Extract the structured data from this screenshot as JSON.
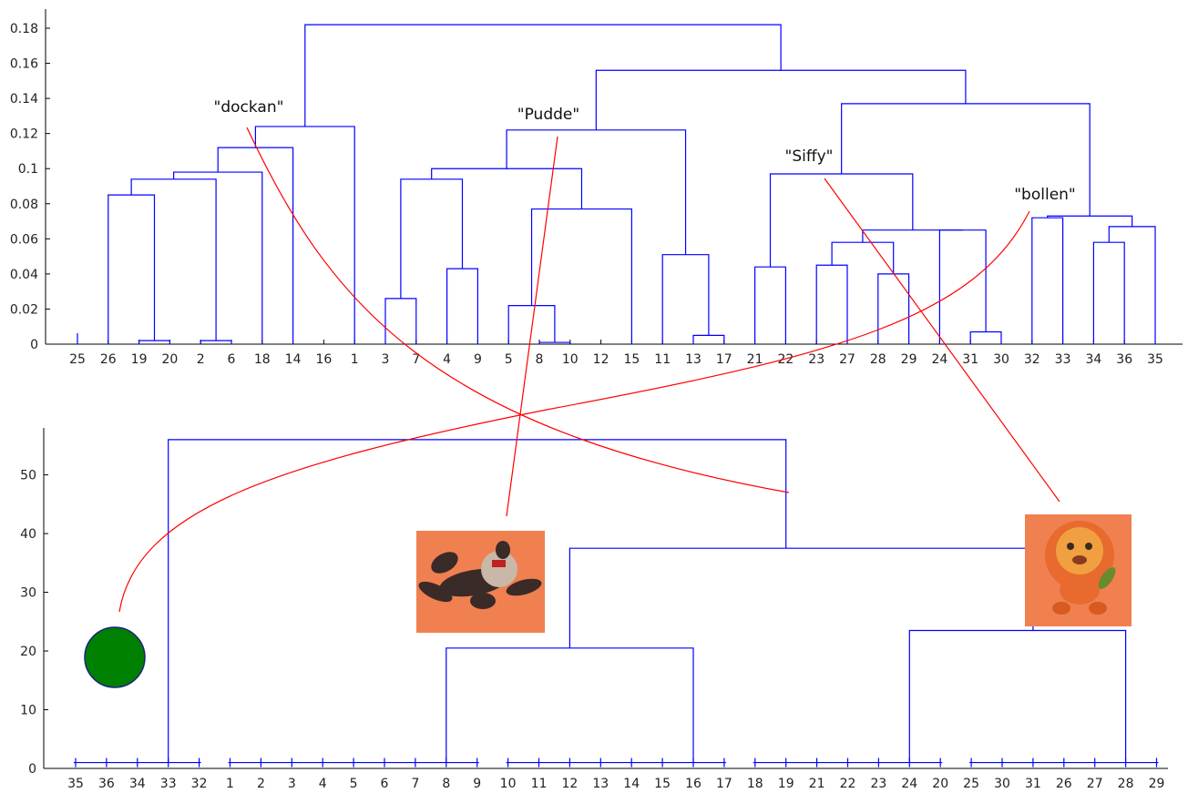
{
  "colors": {
    "dendrogram": "#0000ff",
    "annotation_line": "#ff0000",
    "axis": "#000000",
    "ball_fill": "#008000",
    "ball_stroke": "#1a237e",
    "photo_background": "#f08050"
  },
  "chart_data": [
    {
      "type": "dendrogram",
      "y_axis": {
        "min": 0,
        "max": 0.18,
        "ticks": [
          "0",
          "0.02",
          "0.04",
          "0.06",
          "0.08",
          "0.1",
          "0.12",
          "0.14",
          "0.16",
          "0.18"
        ]
      },
      "leaf_order": [
        "25",
        "26",
        "19",
        "20",
        "2",
        "6",
        "18",
        "14",
        "16",
        "1",
        "3",
        "7",
        "4",
        "9",
        "5",
        "8",
        "10",
        "12",
        "15",
        "11",
        "13",
        "17",
        "21",
        "22",
        "23",
        "27",
        "28",
        "29",
        "24",
        "31",
        "30",
        "32",
        "33",
        "34",
        "36",
        "35"
      ],
      "merges": [
        {
          "a": "19",
          "b": "20",
          "h": 0.002
        },
        {
          "a": "2",
          "b": "6",
          "h": 0.002
        },
        {
          "a": "8",
          "b": "10",
          "h": 0.001
        },
        {
          "a": "31",
          "b": "30",
          "h": 0.007
        },
        {
          "a": "13",
          "b": "17",
          "h": 0.005
        },
        {
          "a": "5",
          "b": "m:8",
          "h": 0.022
        },
        {
          "a": "3",
          "b": "7",
          "h": 0.026
        },
        {
          "a": "4",
          "b": "9",
          "h": 0.043
        },
        {
          "a": "28",
          "b": "29",
          "h": 0.04
        },
        {
          "a": "21",
          "b": "22",
          "h": 0.044
        },
        {
          "a": "23",
          "b": "27",
          "h": 0.045
        },
        {
          "a": "11",
          "b": "m:13",
          "h": 0.051
        },
        {
          "a": "34",
          "b": "36",
          "h": 0.058
        },
        {
          "a": "m:23",
          "b": "m:28",
          "h": 0.058
        },
        {
          "a": "24",
          "b": "m:31",
          "h": 0.065
        },
        {
          "a": "m:34",
          "b": "35",
          "h": 0.067
        },
        {
          "a": "m:23",
          "b": "m:24",
          "h": 0.065
        },
        {
          "a": "32",
          "b": "33",
          "h": 0.072
        },
        {
          "a": "m:32",
          "b": "m:34",
          "h": 0.073
        },
        {
          "a": "m:5",
          "b": "15",
          "h": 0.077
        },
        {
          "a": "26",
          "b": "m:19",
          "h": 0.085
        },
        {
          "a": "m:3",
          "b": "m:4",
          "h": 0.094
        },
        {
          "a": "m:26",
          "b": "m:2",
          "h": 0.094
        },
        {
          "a": "m:21",
          "b": "m:23",
          "h": 0.097
        },
        {
          "a": "m:26",
          "b": "18",
          "h": 0.098
        },
        {
          "a": "m:3",
          "b": "m:5",
          "h": 0.1
        },
        {
          "a": "m:26",
          "b": "14",
          "h": 0.112
        },
        {
          "a": "m:3",
          "b": "m:11",
          "h": 0.122
        },
        {
          "a": "m:26",
          "b": "1",
          "h": 0.124
        },
        {
          "a": "m:21",
          "b": "m:32",
          "h": 0.137
        },
        {
          "a": "m:3",
          "b": "m:21",
          "h": 0.156
        },
        {
          "a": "m:26",
          "b": "m:3",
          "h": 0.182
        }
      ]
    },
    {
      "type": "dendrogram",
      "y_axis": {
        "min": 0,
        "max": 58,
        "ticks": [
          "0",
          "10",
          "20",
          "30",
          "40",
          "50"
        ]
      },
      "leaf_order": [
        "35",
        "36",
        "34",
        "33",
        "32",
        "1",
        "2",
        "3",
        "4",
        "5",
        "6",
        "7",
        "8",
        "9",
        "10",
        "11",
        "12",
        "13",
        "14",
        "15",
        "16",
        "17",
        "18",
        "19",
        "21",
        "22",
        "23",
        "24",
        "20",
        "25",
        "30",
        "31",
        "26",
        "27",
        "28",
        "29"
      ],
      "leaf_groups": [
        {
          "from": 0,
          "to": 4,
          "h": 1
        },
        {
          "from": 5,
          "to": 13,
          "h": 1
        },
        {
          "from": 14,
          "to": 21,
          "h": 1
        },
        {
          "from": 22,
          "to": 28,
          "h": 1
        },
        {
          "from": 29,
          "to": 35,
          "h": 1
        }
      ],
      "cluster_merges": [
        {
          "a": 1,
          "b": 2,
          "h": 20.5,
          "ax": "8",
          "bx": "16"
        },
        {
          "a": 3,
          "b": 4,
          "h": 23.5,
          "ax": "24",
          "bx": "28"
        },
        {
          "a": "m1",
          "b": "m2",
          "h": 37.5,
          "ax": "12",
          "bx": "31"
        },
        {
          "a": 0,
          "b": "m3",
          "h": 56,
          "ax": "33",
          "bx": "19"
        }
      ]
    }
  ],
  "annotations": [
    {
      "label": "\"dockan\""
    },
    {
      "label": "\"Pudde\""
    },
    {
      "label": "\"Siffy\""
    },
    {
      "label": "\"bollen\""
    }
  ],
  "pictures": [
    {
      "name": "green-ball"
    },
    {
      "name": "plush-animal-photo"
    },
    {
      "name": "plush-lion-photo"
    }
  ]
}
